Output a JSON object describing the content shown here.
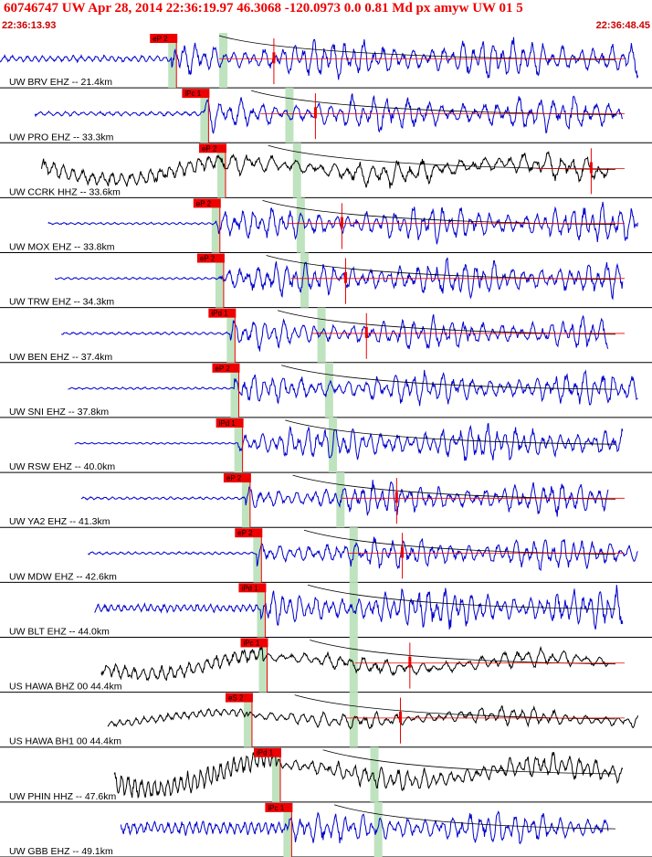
{
  "header": {
    "title": "60746747 UW Apr 28, 2014 22:36:19.97   46.3068 -120.0973  0.0 0.81 Md px amyw UW 01   5",
    "start_time": "22:36:13.93",
    "end_time": "22:36:48.45"
  },
  "colors": {
    "trace_blue": "#0000cc",
    "trace_black": "#000000",
    "pick_red": "#ee0000",
    "window_green": "#bfe3bf",
    "divider": "#000000"
  },
  "chart_data": {
    "type": "line",
    "title": "",
    "xlabel": "",
    "ylabel": "",
    "xlim": [
      "22:36:13.93",
      "22:36:48.45"
    ],
    "grid": false,
    "traces": [
      {
        "label": "UW BRV EHZ -- 21.4km",
        "color": "blue",
        "pick": "eP 2",
        "p_time": 9.1,
        "s_window": 11.8,
        "s_pick": 14.5,
        "amp_noise": 0.12,
        "amp_sig": 0.55,
        "freq": 1.9,
        "long_period": false
      },
      {
        "label": "UW PRO EHZ -- 33.3km",
        "color": "blue",
        "pick": "iPc 1",
        "p_time": 10.8,
        "s_window": 15.3,
        "s_pick": 16.7,
        "amp_noise": 0.08,
        "amp_sig": 0.5,
        "freq": 1.7,
        "long_period": false
      },
      {
        "label": "UW CCRK HHZ -- 33.6km",
        "color": "black",
        "pick": "eP 2",
        "p_time": 11.7,
        "s_window": 15.7,
        "s_pick": 31.3,
        "amp_noise": 0.28,
        "amp_sig": 0.35,
        "freq": 1.5,
        "long_period": true
      },
      {
        "label": "UW MOX EHZ -- 33.8km",
        "color": "blue",
        "pick": "eP 2",
        "p_time": 11.4,
        "s_window": 15.9,
        "s_pick": 18.1,
        "amp_noise": 0.04,
        "amp_sig": 0.5,
        "freq": 2.0,
        "long_period": false
      },
      {
        "label": "UW TRW EHZ -- 34.3km",
        "color": "blue",
        "pick": "eP 2",
        "p_time": 11.6,
        "s_window": 16.1,
        "s_pick": 18.3,
        "amp_noise": 0.04,
        "amp_sig": 0.5,
        "freq": 2.0,
        "long_period": false
      },
      {
        "label": "UW BEN EHZ -- 37.4km",
        "color": "blue",
        "pick": "iPd 1",
        "p_time": 12.2,
        "s_window": 17.0,
        "s_pick": 19.4,
        "amp_noise": 0.05,
        "amp_sig": 0.45,
        "freq": 1.9,
        "long_period": false
      },
      {
        "label": "UW SNI EHZ -- 37.8km",
        "color": "blue",
        "pick": "eP 2",
        "p_time": 12.4,
        "s_window": 17.4,
        "s_pick": 0,
        "amp_noise": 0.04,
        "amp_sig": 0.45,
        "freq": 2.0,
        "long_period": false
      },
      {
        "label": "UW RSW EHZ -- 40.0km",
        "color": "blue",
        "pick": "iPd 1",
        "p_time": 12.6,
        "s_window": 17.6,
        "s_pick": 0,
        "amp_noise": 0.03,
        "amp_sig": 0.5,
        "freq": 2.1,
        "long_period": false
      },
      {
        "label": "UW YA2 EHZ -- 41.3km",
        "color": "blue",
        "pick": "eP 2",
        "p_time": 13.0,
        "s_window": 18.0,
        "s_pick": 21.0,
        "amp_noise": 0.05,
        "amp_sig": 0.45,
        "freq": 2.0,
        "long_period": false
      },
      {
        "label": "UW MDW EHZ -- 42.6km",
        "color": "blue",
        "pick": "eP 2",
        "p_time": 13.6,
        "s_window": 18.7,
        "s_pick": 21.3,
        "amp_noise": 0.05,
        "amp_sig": 0.45,
        "freq": 2.0,
        "long_period": false
      },
      {
        "label": "UW BLT EHZ -- 44.0km",
        "color": "blue",
        "pick": "iPd 1",
        "p_time": 13.8,
        "s_window": 18.7,
        "s_pick": 0,
        "amp_noise": 0.15,
        "amp_sig": 0.55,
        "freq": 2.2,
        "long_period": false
      },
      {
        "label": "US HAWA BHZ 00 44.4km",
        "color": "black",
        "pick": "iPc 1",
        "p_time": 13.9,
        "s_window": 18.7,
        "s_pick": 21.7,
        "amp_noise": 0.28,
        "amp_sig": 0.25,
        "freq": 1.6,
        "long_period": true
      },
      {
        "label": "US HAWA BH1 00 44.4km",
        "color": "black",
        "pick": "eS 2",
        "p_time": 13.1,
        "s_window": 18.7,
        "s_pick": 21.2,
        "amp_noise": 0.15,
        "amp_sig": 0.25,
        "freq": 1.8,
        "long_period": true
      },
      {
        "label": "UW PHIN HHZ -- 47.6km",
        "color": "black",
        "pick": "iPd 1",
        "p_time": 14.6,
        "s_window": 19.8,
        "s_pick": 0,
        "amp_noise": 0.4,
        "amp_sig": 0.35,
        "freq": 2.2,
        "long_period": true
      },
      {
        "label": "UW GBB EHZ -- 49.1km",
        "color": "blue",
        "pick": "iPc 1",
        "p_time": 15.2,
        "s_window": 20.0,
        "s_pick": 0,
        "amp_noise": 0.25,
        "amp_sig": 0.45,
        "freq": 2.1,
        "long_period": false
      }
    ]
  }
}
